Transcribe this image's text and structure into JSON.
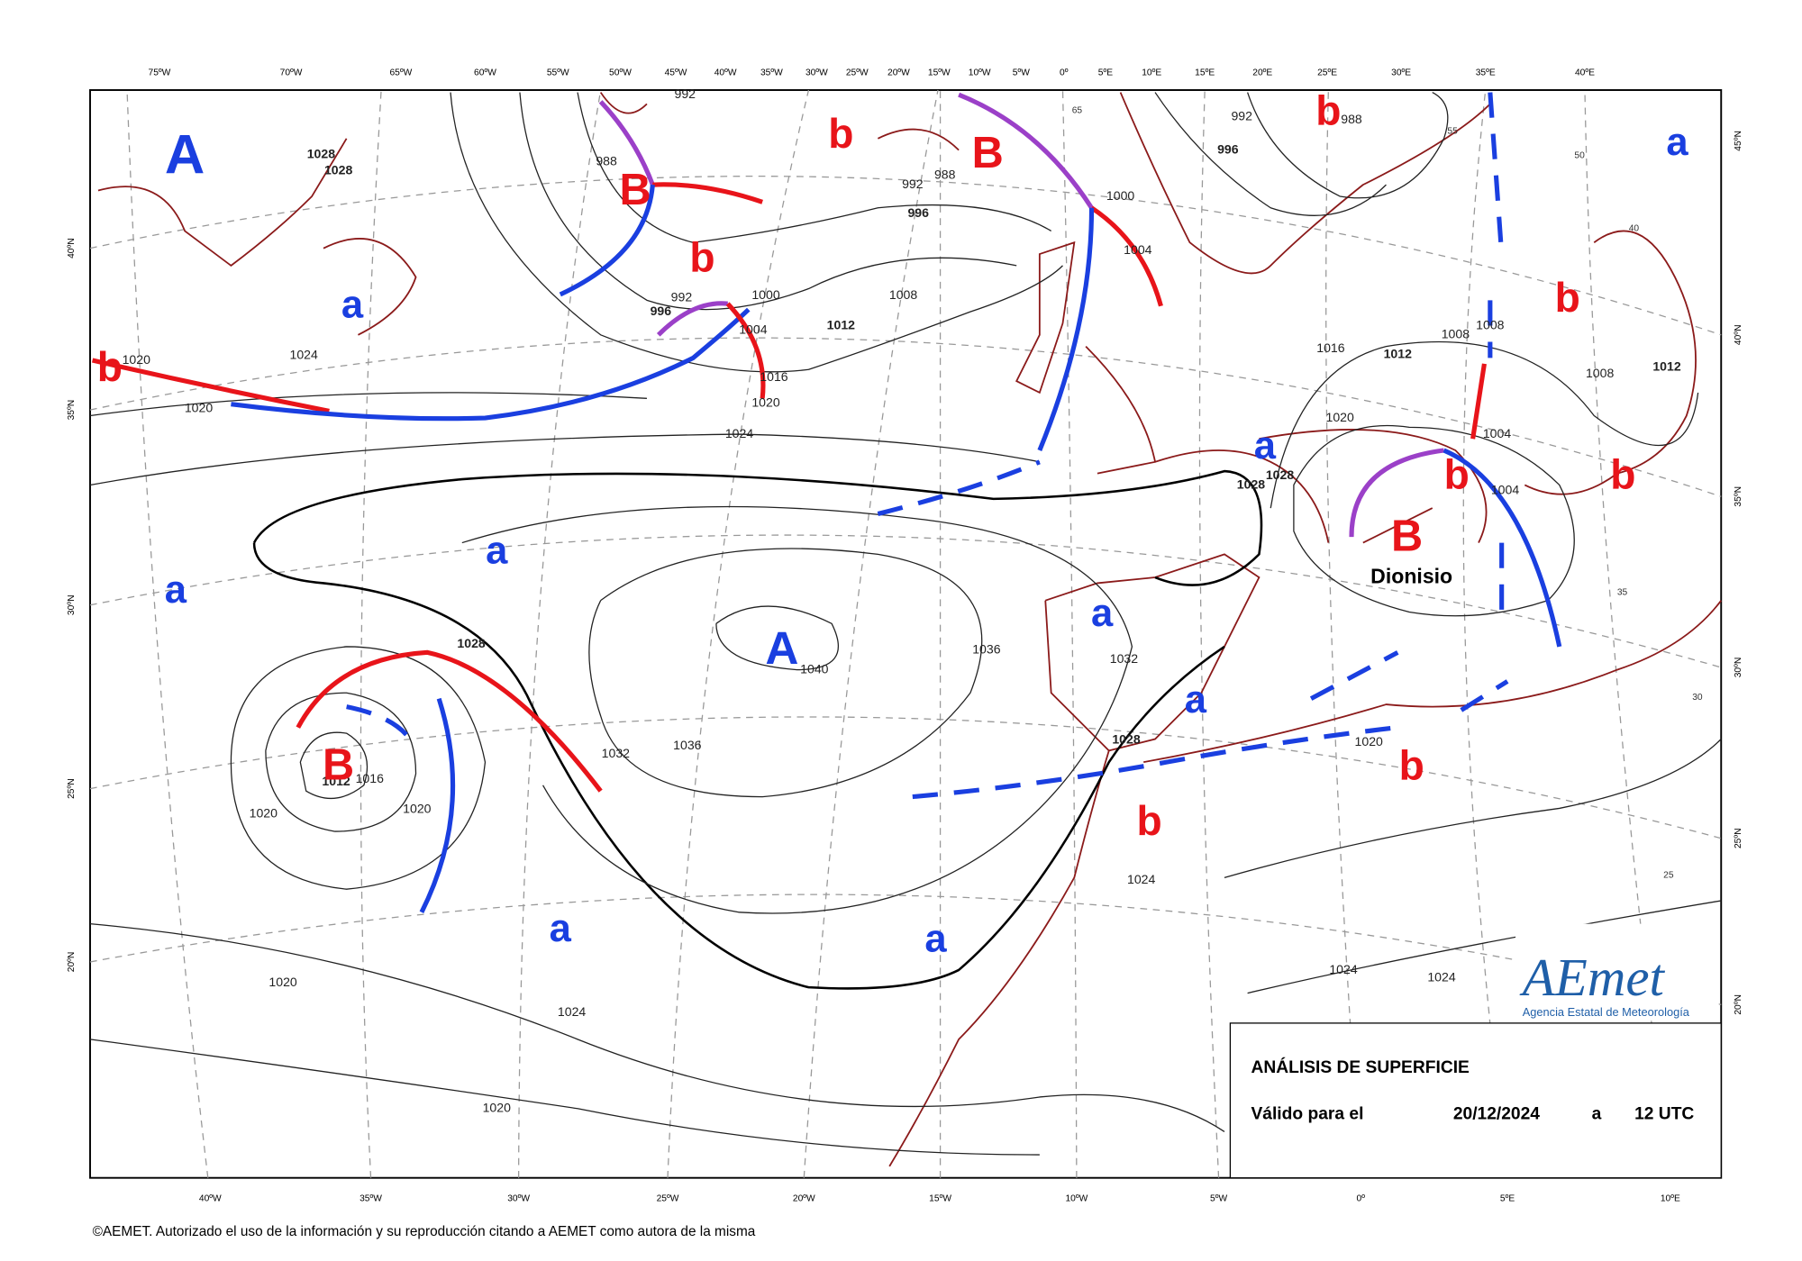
{
  "top_longitudes": [
    "75ºW",
    "70ºW",
    "65ºW",
    "60ºW",
    "55ºW",
    "50ºW",
    "45ºW",
    "40ºW",
    "35ºW",
    "30ºW",
    "25ºW",
    "20ºW",
    "15ºW",
    "10ºW",
    "5ºW",
    "0º",
    "5ºE",
    "10ºE",
    "15ºE",
    "20ºE",
    "25ºE",
    "30ºE",
    "35ºE",
    "40ºE"
  ],
  "bottom_longitudes": [
    "40ºW",
    "35ºW",
    "30ºW",
    "25ºW",
    "20ºW",
    "15ºW",
    "10ºW",
    "5ºW",
    "0º",
    "5ºE",
    "10ºE"
  ],
  "left_latitudes": [
    "40ºN",
    "35ºN",
    "30ºN",
    "25ºN",
    "20ºN"
  ],
  "right_latitudes": [
    "45ºN",
    "40ºN",
    "35ºN",
    "30ºN",
    "25ºN",
    "20ºN"
  ],
  "pressure_labels": [
    "1028",
    "1028",
    "1024",
    "1020",
    "1020",
    "1024",
    "992",
    "988",
    "992",
    "988",
    "996",
    "992",
    "996",
    "1000",
    "1004",
    "1008",
    "1012",
    "1016",
    "1020",
    "1000",
    "1004",
    "996",
    "992",
    "988",
    "1016",
    "1012",
    "1020",
    "1008",
    "1008",
    "1008",
    "1012",
    "1004",
    "1004",
    "1028",
    "1028",
    "1036",
    "1032",
    "1040",
    "1036",
    "1032",
    "1028",
    "1012",
    "1016",
    "1020",
    "1020",
    "1028",
    "1020",
    "1024",
    "1020",
    "1024",
    "1020",
    "1024",
    "1024"
  ],
  "grid_labels": [
    "65",
    "55",
    "50",
    "40",
    "35",
    "30",
    "25"
  ],
  "centers": [
    "A",
    "A",
    "B",
    "B",
    "B",
    "B",
    "b",
    "b",
    "b",
    "b",
    "b",
    "b",
    "b",
    "b",
    "b",
    "a",
    "a",
    "a",
    "a",
    "a",
    "a",
    "a",
    "a",
    "a"
  ],
  "storm_name": "Dionisio",
  "title_box": {
    "title": "ANÁLISIS DE SUPERFICIE",
    "valid_label": "Válido para el",
    "date": "20/12/2024",
    "connector": "a",
    "time": "12 UTC"
  },
  "logo": {
    "name": "AEmet",
    "subtitle": "Agencia Estatal de Meteorología"
  },
  "footer": "©AEMET. Autorizado el uso de la información y su reproducción citando a AEMET como autora de la misma"
}
